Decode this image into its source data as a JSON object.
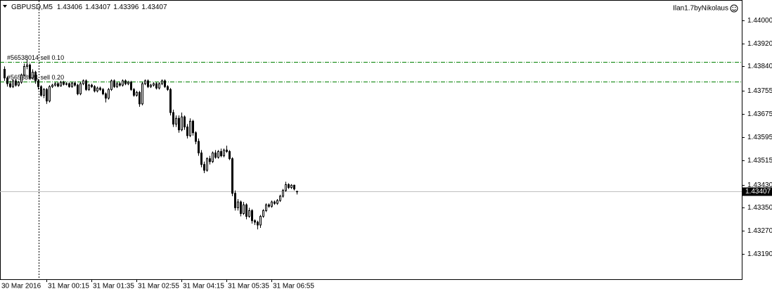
{
  "chart_data": {
    "type": "candlestick",
    "symbol": "GBPUSD,M5",
    "indicator": "Ilan1.7byNikolaus",
    "bull_color": "#ffffff",
    "bear_color": "#000000",
    "line_color": "#000000",
    "order_color": "#008000",
    "categories": [
      "30 Mar 2016",
      null,
      null,
      null,
      null,
      null,
      null,
      null,
      null,
      null,
      null,
      null,
      null,
      null,
      null,
      "31 Mar 00:15",
      null,
      null,
      null,
      null,
      null,
      null,
      null,
      null,
      null,
      null,
      null,
      null,
      null,
      null,
      null,
      "31 Mar 01:35",
      null,
      null,
      null,
      null,
      null,
      null,
      null,
      null,
      null,
      null,
      null,
      null,
      null,
      null,
      null,
      "31 Mar 02:55",
      null,
      null,
      null,
      null,
      null,
      null,
      null,
      null,
      null,
      null,
      null,
      null,
      null,
      null,
      null,
      "31 Mar 04:15",
      null,
      null,
      null,
      null,
      null,
      null,
      null,
      null,
      null,
      null,
      null,
      null,
      null,
      null,
      null,
      "31 Mar 05:35",
      null,
      null,
      null,
      null,
      null,
      null,
      null,
      null,
      null,
      null,
      null,
      null,
      null,
      null,
      null,
      "31 Mar 06:55",
      null,
      null,
      null,
      null,
      null,
      null,
      null,
      null,
      null
    ],
    "open": [
      1.4383,
      1.438,
      1.4378,
      1.4377,
      1.4379,
      1.43775,
      1.43785,
      1.4381,
      1.4384,
      1.43845,
      1.438,
      1.4382,
      1.4379,
      1.4377,
      1.4374,
      1.4376,
      1.4372,
      1.4377,
      1.43775,
      1.4378,
      1.43772,
      1.43785,
      1.43778,
      1.4378,
      1.4377,
      1.43782,
      1.43775,
      1.43745,
      1.4378,
      1.4379,
      1.4376,
      1.43775,
      1.4377,
      1.43755,
      1.43765,
      1.4376,
      1.43745,
      1.4373,
      1.4376,
      1.4379,
      1.4377,
      1.4378,
      1.43775,
      1.4379,
      1.4378,
      1.43785,
      1.4376,
      1.4374,
      1.4375,
      1.4371,
      1.4378,
      1.4379,
      1.4377,
      1.43775,
      1.4378,
      1.43765,
      1.4378,
      1.4379,
      1.4377,
      1.4376,
      1.4368,
      1.4364,
      1.4366,
      1.4362,
      1.43665,
      1.4363,
      1.436,
      1.4365,
      1.4361,
      1.4358,
      1.4354,
      1.435,
      1.4348,
      1.4352,
      1.4351,
      1.4354,
      1.43525,
      1.43545,
      1.4353,
      1.4355,
      1.43545,
      1.4352,
      1.434,
      1.4335,
      1.4337,
      1.4333,
      1.4336,
      1.4332,
      1.4334,
      1.43305,
      1.433,
      1.4329,
      1.4332,
      1.4334,
      1.4336,
      1.43355,
      1.4337,
      1.43365,
      1.43375,
      1.4339,
      1.4341,
      1.4343,
      1.4342,
      1.43428,
      1.43406
    ],
    "high": [
      1.4384,
      1.43805,
      1.4379,
      1.43795,
      1.43795,
      1.4379,
      1.43815,
      1.4385,
      1.43865,
      1.4385,
      1.4383,
      1.43825,
      1.43795,
      1.43775,
      1.43765,
      1.43765,
      1.43775,
      1.4378,
      1.43785,
      1.43785,
      1.4379,
      1.4379,
      1.43786,
      1.43784,
      1.43786,
      1.43788,
      1.4378,
      1.43785,
      1.43795,
      1.43795,
      1.4378,
      1.4378,
      1.43775,
      1.4377,
      1.4377,
      1.43765,
      1.4375,
      1.43765,
      1.43795,
      1.43795,
      1.43785,
      1.43785,
      1.43795,
      1.43795,
      1.4379,
      1.4379,
      1.43765,
      1.43755,
      1.43755,
      1.43785,
      1.43795,
      1.43795,
      1.4378,
      1.43785,
      1.43785,
      1.43785,
      1.43795,
      1.43795,
      1.43775,
      1.43765,
      1.4369,
      1.4367,
      1.4367,
      1.4368,
      1.4367,
      1.4364,
      1.4366,
      1.43655,
      1.43615,
      1.4359,
      1.4355,
      1.4351,
      1.43525,
      1.4353,
      1.43545,
      1.4355,
      1.4355,
      1.43555,
      1.43555,
      1.43565,
      1.4355,
      1.43525,
      1.4341,
      1.4338,
      1.43375,
      1.4337,
      1.43365,
      1.4335,
      1.43345,
      1.4331,
      1.43305,
      1.43325,
      1.43345,
      1.43365,
      1.43365,
      1.43375,
      1.43375,
      1.4338,
      1.43395,
      1.43415,
      1.4344,
      1.43435,
      1.43432,
      1.4343,
      1.43407
    ],
    "low": [
      1.4379,
      1.4377,
      1.43765,
      1.43765,
      1.4377,
      1.4377,
      1.4378,
      1.43805,
      1.4383,
      1.43795,
      1.43795,
      1.4378,
      1.4376,
      1.43735,
      1.4373,
      1.4371,
      1.43715,
      1.43765,
      1.4377,
      1.43768,
      1.4377,
      1.43774,
      1.43774,
      1.43766,
      1.43766,
      1.4377,
      1.4374,
      1.4374,
      1.43775,
      1.43755,
      1.43755,
      1.43765,
      1.4375,
      1.4375,
      1.43755,
      1.4374,
      1.43715,
      1.43725,
      1.43755,
      1.43765,
      1.43765,
      1.4377,
      1.4377,
      1.43775,
      1.43775,
      1.43755,
      1.43735,
      1.43735,
      1.437,
      1.43705,
      1.43775,
      1.43765,
      1.43765,
      1.4377,
      1.4376,
      1.4376,
      1.43775,
      1.43765,
      1.43755,
      1.4367,
      1.4363,
      1.4363,
      1.4361,
      1.43615,
      1.4362,
      1.4359,
      1.43595,
      1.436,
      1.4357,
      1.4353,
      1.4349,
      1.4347,
      1.43475,
      1.435,
      1.43505,
      1.4352,
      1.4352,
      1.43525,
      1.43525,
      1.4354,
      1.43515,
      1.4339,
      1.4334,
      1.4334,
      1.4332,
      1.43325,
      1.4331,
      1.43315,
      1.43295,
      1.4329,
      1.43275,
      1.4328,
      1.43315,
      1.43335,
      1.4335,
      1.4335,
      1.4336,
      1.4336,
      1.4337,
      1.43385,
      1.43405,
      1.43415,
      1.43415,
      1.4341,
      1.43396
    ],
    "close": [
      1.438,
      1.4378,
      1.4377,
      1.4379,
      1.43775,
      1.43785,
      1.4381,
      1.4384,
      1.43845,
      1.438,
      1.4382,
      1.4379,
      1.4377,
      1.4374,
      1.4376,
      1.4372,
      1.4377,
      1.43775,
      1.4378,
      1.43772,
      1.43785,
      1.43778,
      1.4378,
      1.4377,
      1.43782,
      1.43775,
      1.43745,
      1.4378,
      1.4379,
      1.4376,
      1.43775,
      1.4377,
      1.43755,
      1.43765,
      1.4376,
      1.43745,
      1.4373,
      1.4376,
      1.4379,
      1.4377,
      1.4378,
      1.43775,
      1.4379,
      1.4378,
      1.43785,
      1.4376,
      1.4374,
      1.4375,
      1.4371,
      1.4378,
      1.4379,
      1.4377,
      1.43775,
      1.4378,
      1.43765,
      1.4378,
      1.4379,
      1.4377,
      1.4376,
      1.4368,
      1.4364,
      1.4366,
      1.4362,
      1.43665,
      1.4363,
      1.436,
      1.4365,
      1.4361,
      1.4358,
      1.4354,
      1.435,
      1.4348,
      1.4352,
      1.4351,
      1.4354,
      1.43525,
      1.43545,
      1.4353,
      1.4355,
      1.43545,
      1.4352,
      1.434,
      1.4335,
      1.4337,
      1.4333,
      1.4336,
      1.4332,
      1.4334,
      1.43305,
      1.433,
      1.4329,
      1.4332,
      1.4334,
      1.4336,
      1.43355,
      1.4337,
      1.43365,
      1.43375,
      1.4339,
      1.4341,
      1.4343,
      1.4342,
      1.43428,
      1.43415,
      1.43407
    ],
    "ylim": [
      1.43102,
      1.44063
    ],
    "yticks": [
      {
        "value": 1.44,
        "label": "1.44000"
      },
      {
        "value": 1.4392,
        "label": "1.43920"
      },
      {
        "value": 1.4384,
        "label": "1.43840"
      },
      1.43755,
      1.43675,
      1.43595,
      1.43515,
      {
        "value": 1.4343,
        "label": "1.43430"
      },
      {
        "value": 1.4335,
        "label": "1.43350"
      },
      {
        "value": 1.4327,
        "label": "1.43270"
      },
      {
        "value": 1.4319,
        "label": "1.43190"
      }
    ],
    "orders": [
      {
        "label": "#56538014 sell 0.10",
        "price": 1.43856
      },
      {
        "label": "#56538581 sell 0.20",
        "price": 1.43788
      }
    ]
  }
}
